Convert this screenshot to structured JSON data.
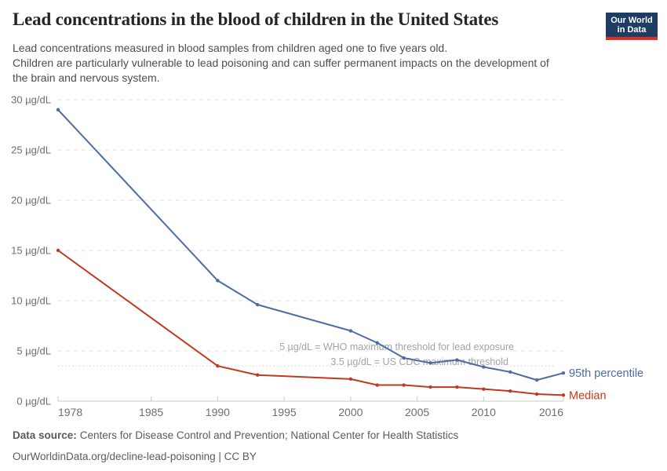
{
  "header": {
    "title": "Lead concentrations in the blood of children in the United States",
    "subtitle_lines": [
      "Lead concentrations measured in blood samples from children aged one to five years old.",
      "Children are particularly vulnerable to lead poisoning and can suffer permanent impacts on the development of",
      "the brain and nervous system."
    ],
    "logo": {
      "line1": "Our World",
      "line2": "in Data",
      "bg_color": "#1d3d63",
      "bar_color": "#dc3022"
    }
  },
  "chart_data": {
    "type": "line",
    "title": "Lead concentrations in the blood of children in the United States",
    "xlabel": "",
    "ylabel": "µg/dL",
    "xlim": [
      1978,
      2016
    ],
    "ylim": [
      0,
      30
    ],
    "grid": "horizontal dashed",
    "legend_position": "right of line ends",
    "x": [
      1978,
      1990,
      1993,
      2000,
      2002,
      2004,
      2006,
      2008,
      2010,
      2012,
      2014,
      2016
    ],
    "series": [
      {
        "name": "95th percentile",
        "color": "#4C6DA3",
        "values": [
          29,
          12,
          9.6,
          7.0,
          5.8,
          4.3,
          3.8,
          4.1,
          3.4,
          2.9,
          2.1,
          2.8
        ]
      },
      {
        "name": "Median",
        "color": "#C03A20",
        "values": [
          15,
          3.5,
          2.6,
          2.2,
          1.6,
          1.6,
          1.4,
          1.4,
          1.2,
          1.0,
          0.7,
          0.6
        ]
      }
    ],
    "x_ticks": [
      1978,
      1985,
      1990,
      1995,
      2000,
      2005,
      2010,
      2016
    ],
    "y_ticks": [
      0,
      5,
      10,
      15,
      20,
      25,
      30
    ],
    "y_tick_suffix": " µg/dL",
    "annotations": [
      {
        "text": "5 µg/dL = WHO maximum threshold for lead exposure",
        "y": 5,
        "style": "dashed-gridline"
      },
      {
        "text": "3.5 µg/dL = US CDC maximum threshold",
        "y": 3.5,
        "style": "dotted"
      }
    ]
  },
  "footer": {
    "source_label": "Data source:",
    "source": "Centers for Disease Control and Prevention; National Center for Health Statistics",
    "link": "OurWorldinData.org/decline-lead-poisoning | CC BY"
  }
}
